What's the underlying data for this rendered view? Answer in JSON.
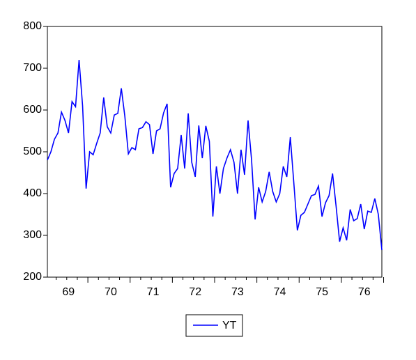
{
  "chart_data": {
    "type": "line",
    "categories": [
      null,
      null,
      null,
      null,
      null,
      null,
      "69",
      null,
      null,
      null,
      null,
      null,
      null,
      null,
      null,
      null,
      null,
      null,
      "70",
      null,
      null,
      null,
      null,
      null,
      null,
      null,
      null,
      null,
      null,
      null,
      "71",
      null,
      null,
      null,
      null,
      null,
      null,
      null,
      null,
      null,
      null,
      null,
      "72",
      null,
      null,
      null,
      null,
      null,
      null,
      null,
      null,
      null,
      null,
      null,
      "73",
      null,
      null,
      null,
      null,
      null,
      null,
      null,
      null,
      null,
      null,
      null,
      "74",
      null,
      null,
      null,
      null,
      null,
      null,
      null,
      null,
      null,
      null,
      null,
      "75",
      null,
      null,
      null,
      null,
      null,
      null,
      null,
      null,
      null,
      null,
      null,
      "76",
      null,
      null,
      null,
      null,
      null
    ],
    "series": [
      {
        "name": "YT",
        "color": "#0000ff",
        "values": [
          480,
          500,
          530,
          545,
          595,
          575,
          545,
          620,
          608,
          720,
          610,
          412,
          500,
          493,
          520,
          545,
          630,
          560,
          545,
          588,
          592,
          652,
          585,
          495,
          510,
          505,
          555,
          558,
          572,
          565,
          495,
          550,
          555,
          593,
          615,
          415,
          448,
          460,
          540,
          460,
          592,
          475,
          440,
          563,
          485,
          562,
          525,
          345,
          465,
          400,
          460,
          485,
          505,
          475,
          400,
          505,
          445,
          575,
          480,
          338,
          415,
          380,
          405,
          452,
          405,
          380,
          400,
          465,
          440,
          535,
          425,
          312,
          348,
          355,
          375,
          395,
          398,
          418,
          345,
          378,
          395,
          448,
          370,
          285,
          318,
          288,
          362,
          335,
          340,
          375,
          315,
          358,
          355,
          388,
          350,
          265
        ]
      }
    ],
    "ylim": [
      200,
      800
    ],
    "yticks": [
      200,
      300,
      400,
      500,
      600,
      700,
      800
    ]
  }
}
